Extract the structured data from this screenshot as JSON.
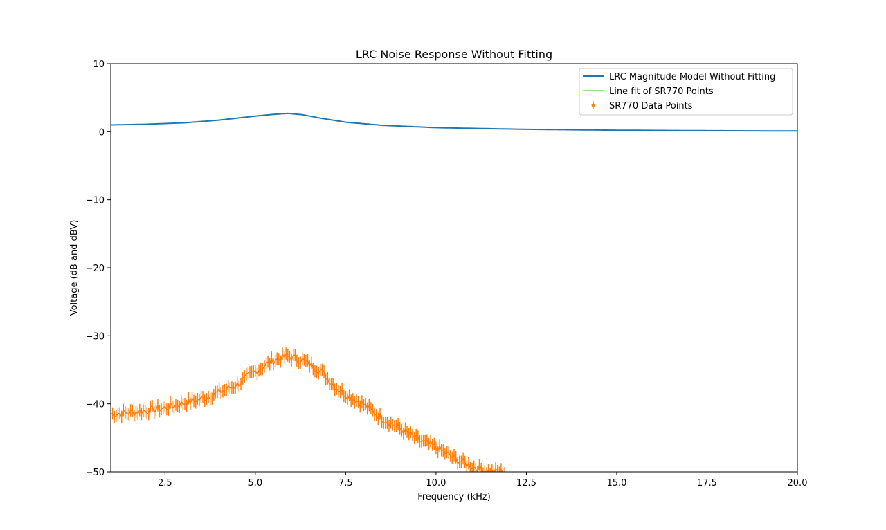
{
  "chart_data": {
    "type": "line",
    "title": "LRC Noise Response Without Fitting",
    "xlabel": "Frequency (kHz)",
    "ylabel": "Voltage (dB and dBV)",
    "xlim": [
      1.0,
      20.0
    ],
    "ylim": [
      -50,
      10
    ],
    "xticks": [
      2.5,
      5.0,
      7.5,
      10.0,
      12.5,
      15.0,
      17.5,
      20.0
    ],
    "xtick_labels": [
      "2.5",
      "5.0",
      "7.5",
      "10.0",
      "12.5",
      "15.0",
      "17.5",
      "20.0"
    ],
    "yticks": [
      10,
      0,
      -10,
      -20,
      -30,
      -40,
      -50
    ],
    "ytick_labels": [
      "10",
      "0",
      "−10",
      "−20",
      "−30",
      "−40",
      "−50"
    ],
    "grid": false,
    "legend_position": "upper right",
    "legend": [
      {
        "label": "LRC Magnitude Model Without Fitting",
        "color": "#1f77b4",
        "style": "line"
      },
      {
        "label": "Line fit of SR770 Points",
        "color": "#98df8a",
        "style": "line"
      },
      {
        "label": "SR770 Data Points",
        "color": "#ff7f0e",
        "style": "errorbar"
      }
    ],
    "series": [
      {
        "name": "LRC Magnitude Model Without Fitting",
        "color": "#1f77b4",
        "x": [
          1.0,
          2.0,
          3.0,
          4.0,
          4.5,
          5.0,
          5.5,
          5.9,
          6.3,
          6.8,
          7.5,
          8.5,
          10.0,
          12.5,
          15.0,
          17.5,
          20.0
        ],
        "y": [
          1.0,
          1.1,
          1.3,
          1.7,
          2.0,
          2.3,
          2.55,
          2.7,
          2.5,
          2.0,
          1.4,
          0.95,
          0.6,
          0.35,
          0.22,
          0.15,
          0.1
        ]
      },
      {
        "name": "Line fit of SR770 Points",
        "color": "#98df8a",
        "x": [],
        "y": []
      },
      {
        "name": "SR770 Data Points",
        "color": "#ff7f0e",
        "error": 0.9,
        "x": [
          1.0,
          1.5,
          2.0,
          2.5,
          3.0,
          3.5,
          4.0,
          4.5,
          5.0,
          5.5,
          5.9,
          6.3,
          6.8,
          7.2,
          7.5,
          8.0,
          8.5,
          9.0,
          9.5,
          10.0,
          10.5,
          11.0,
          11.5,
          11.9
        ],
        "y": [
          -41.5,
          -41.3,
          -41.0,
          -40.6,
          -39.9,
          -39.3,
          -38.3,
          -37.2,
          -35.2,
          -33.6,
          -33.0,
          -33.6,
          -35.1,
          -37.4,
          -38.6,
          -40.1,
          -42.1,
          -43.6,
          -45.3,
          -46.4,
          -48.0,
          -49.2,
          -50.0,
          -50.0
        ]
      }
    ]
  }
}
